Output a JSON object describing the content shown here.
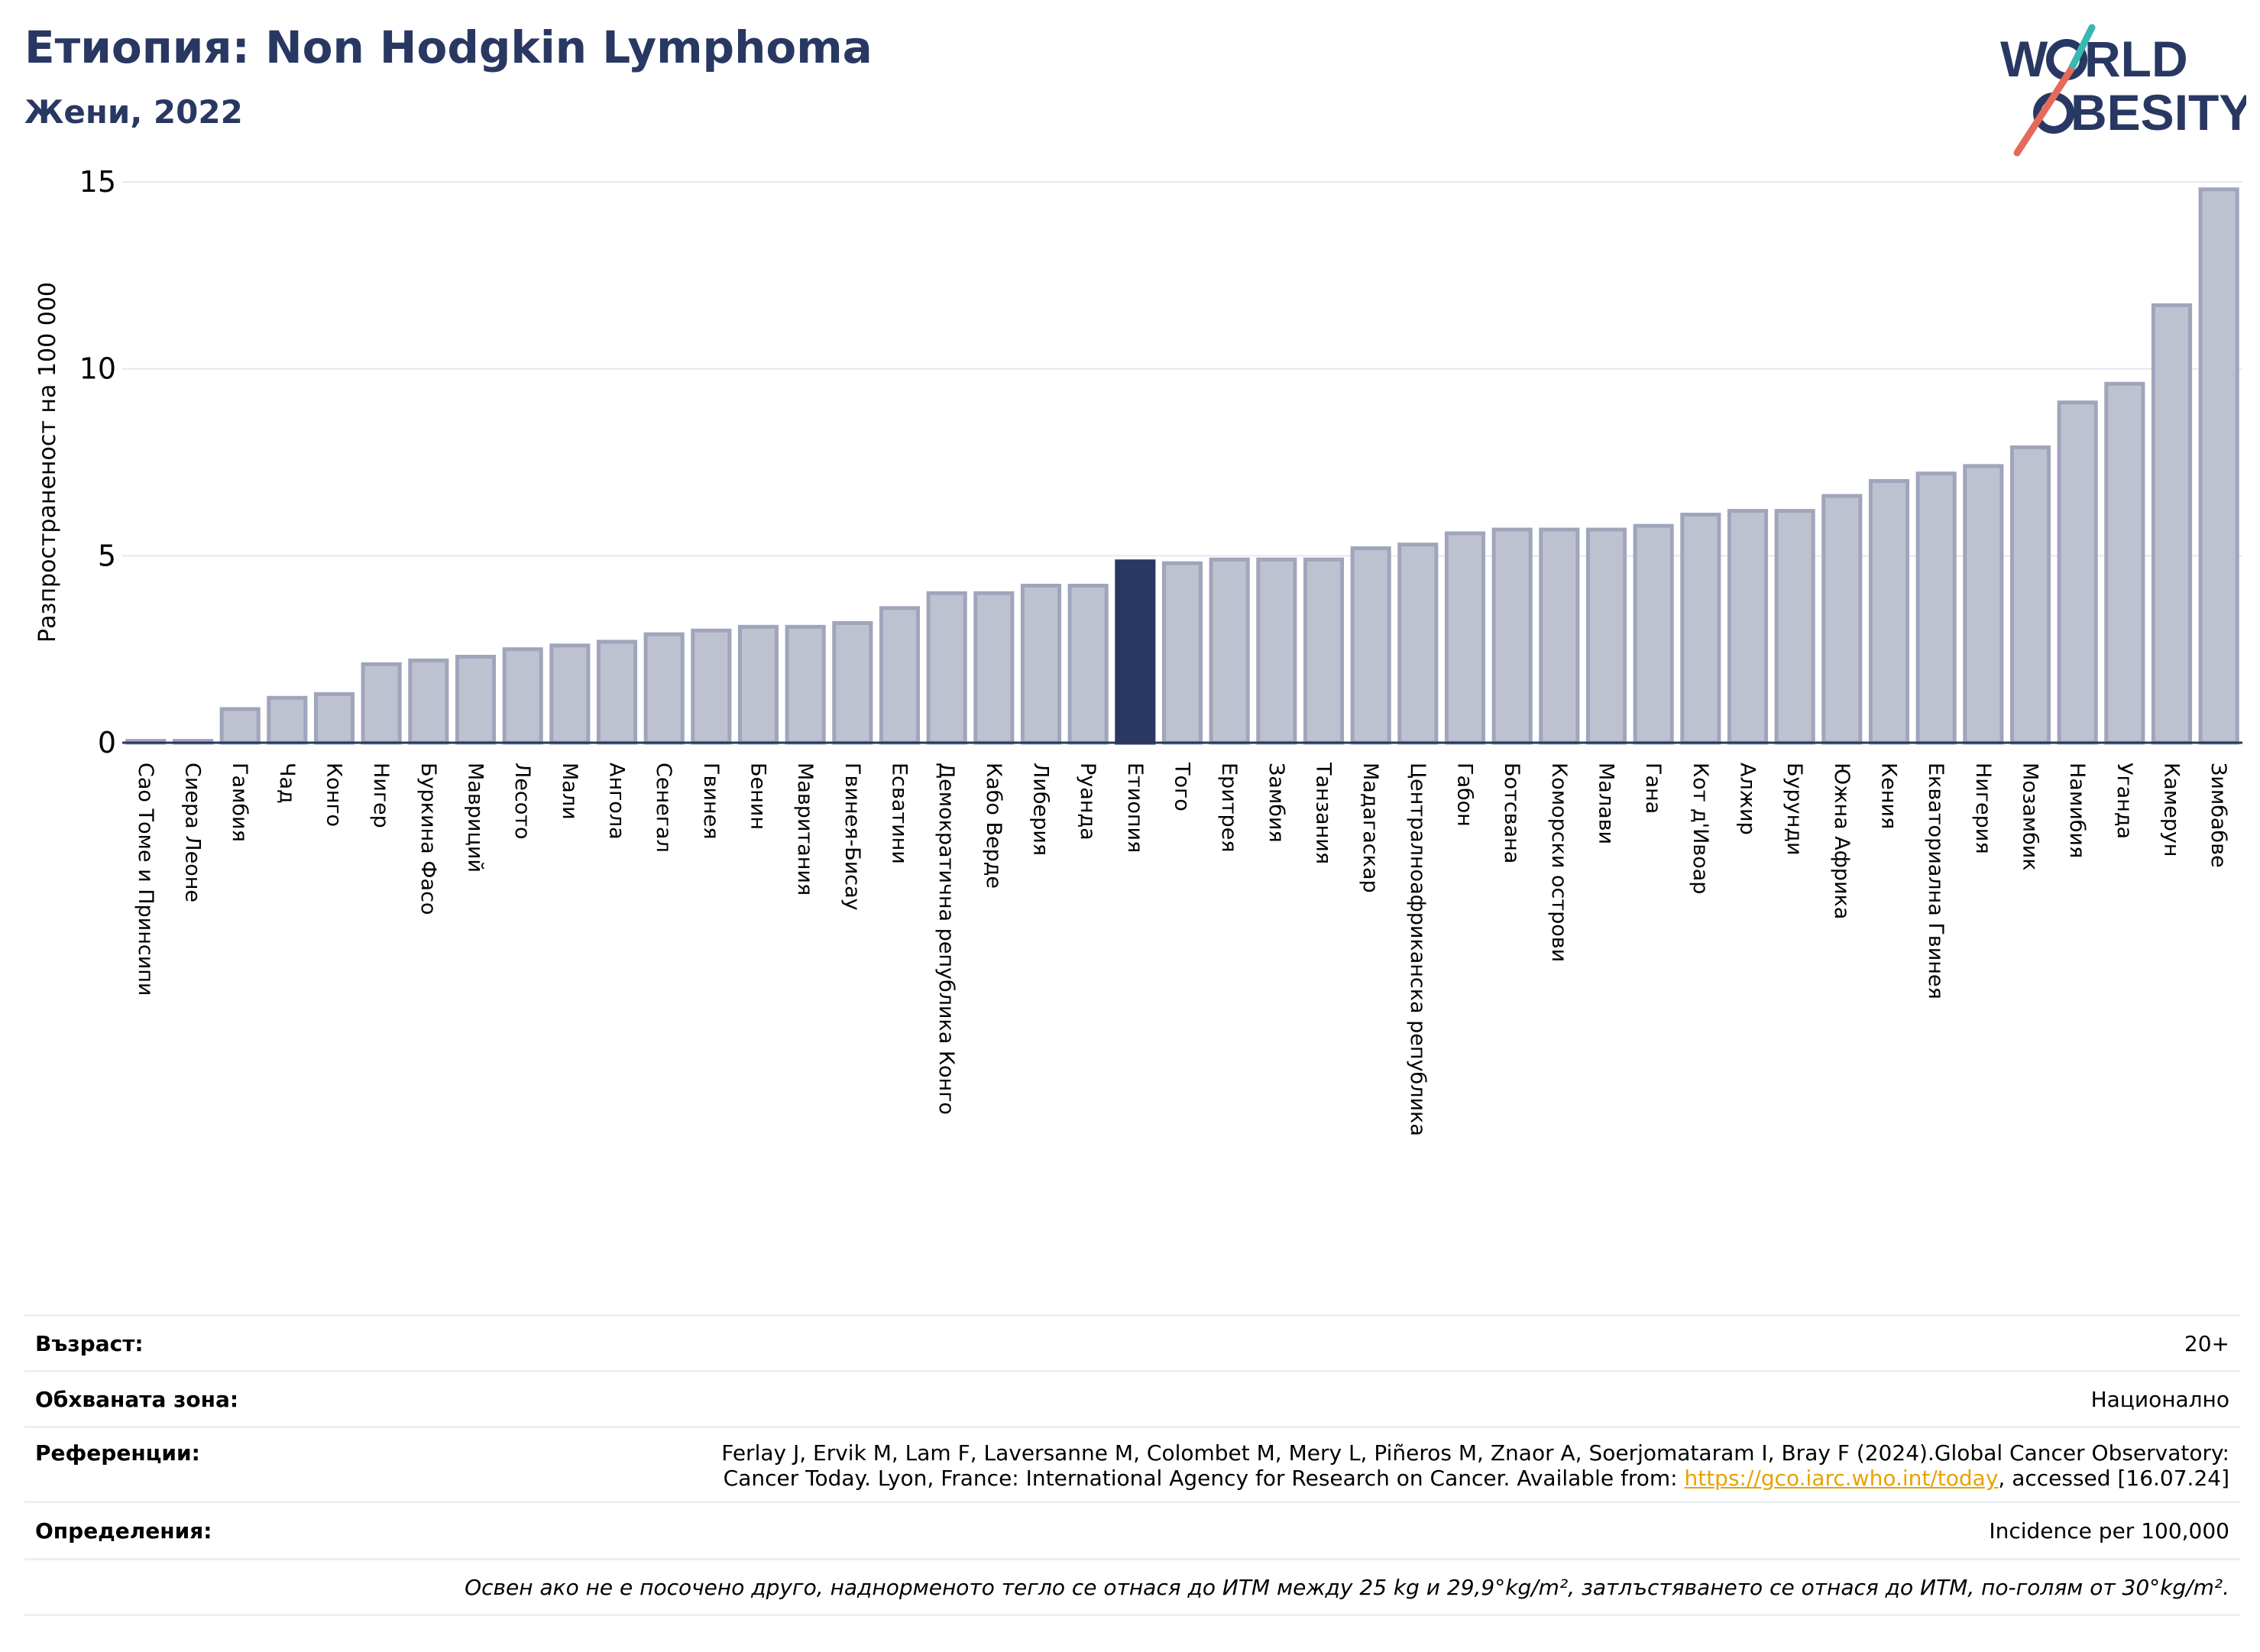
{
  "header": {
    "title": "Етиопия: Non Hodgkin Lymphoma",
    "subtitle": "Жени, 2022",
    "logo_text": "WORLD OBESITY"
  },
  "colors": {
    "bar_fill": "#bec2d0",
    "bar_stroke": "#9fa5bb",
    "highlight": "#283862",
    "title": "#283862",
    "link": "#e8a200"
  },
  "chart_data": {
    "type": "bar",
    "ylabel": "Разпространеност  на 100 000",
    "ylim": [
      0,
      15
    ],
    "yticks": [
      0,
      5,
      10,
      15
    ],
    "grid": true,
    "highlight_category": "Етиопия",
    "categories": [
      "Сао Томе и Принсипи",
      "Сиера Леоне",
      "Гамбия",
      "Чад",
      "Конго",
      "Нигер",
      "Буркина Фасо",
      "Мавриций",
      "Лесото",
      "Мали",
      "Ангола",
      "Сенегал",
      "Гвинея",
      "Бенин",
      "Мавритания",
      "Гвинея-Бисау",
      "Есватини",
      "Демократична република Конго",
      "Кабо Верде",
      "Либерия",
      "Руанда",
      "Етиопия",
      "Того",
      "Еритрея",
      "Замбия",
      "Танзания",
      "Мадагаскар",
      "Централноафриканска република",
      "Габон",
      "Ботсвана",
      "Коморски острови",
      "Малави",
      "Гана",
      "Кот д'Ивоар",
      "Алжир",
      "Бурунди",
      "Южна Африка",
      "Кения",
      "Екваториална Гвинея",
      "Нигерия",
      "Мозамбик",
      "Намибия",
      "Уганда",
      "Камерун",
      "Зимбабве"
    ],
    "values": [
      0.05,
      0.05,
      0.9,
      1.2,
      1.3,
      2.1,
      2.2,
      2.3,
      2.5,
      2.6,
      2.7,
      2.9,
      3.0,
      3.1,
      3.1,
      3.2,
      3.6,
      4.0,
      4.0,
      4.2,
      4.2,
      4.85,
      4.8,
      4.9,
      4.9,
      4.9,
      5.2,
      5.3,
      5.6,
      5.7,
      5.7,
      5.7,
      5.8,
      6.1,
      6.2,
      6.2,
      6.6,
      7.0,
      7.2,
      7.4,
      7.9,
      9.1,
      9.6,
      11.7,
      14.8
    ]
  },
  "info": {
    "age_label": "Възраст:",
    "age_value": "20+",
    "area_label": "Обхваната зона:",
    "area_value": "Национално",
    "refs_label": "Референции:",
    "refs_line1": "Ferlay J, Ervik M, Lam F, Laversanne M, Colombet M, Mery L, Piñeros M, Znaor A, Soerjomataram I, Bray F (2024).Global Cancer Observatory:",
    "refs_line2_pre": "Cancer Today. Lyon, France: International Agency for Research on Cancer. Available from: ",
    "refs_link": "https://gco.iarc.who.int/today",
    "refs_line2_post": ", accessed [16.07.24]",
    "defs_label": "Определения:",
    "defs_value": "Incidence per 100,000",
    "note": "Освен ако не е посочено друго, наднорменото тегло се отнася до ИТМ между 25 kg и 29,9°kg/m², затлъстяването се отнася до ИТМ, по-голям от 30°kg/m²."
  }
}
